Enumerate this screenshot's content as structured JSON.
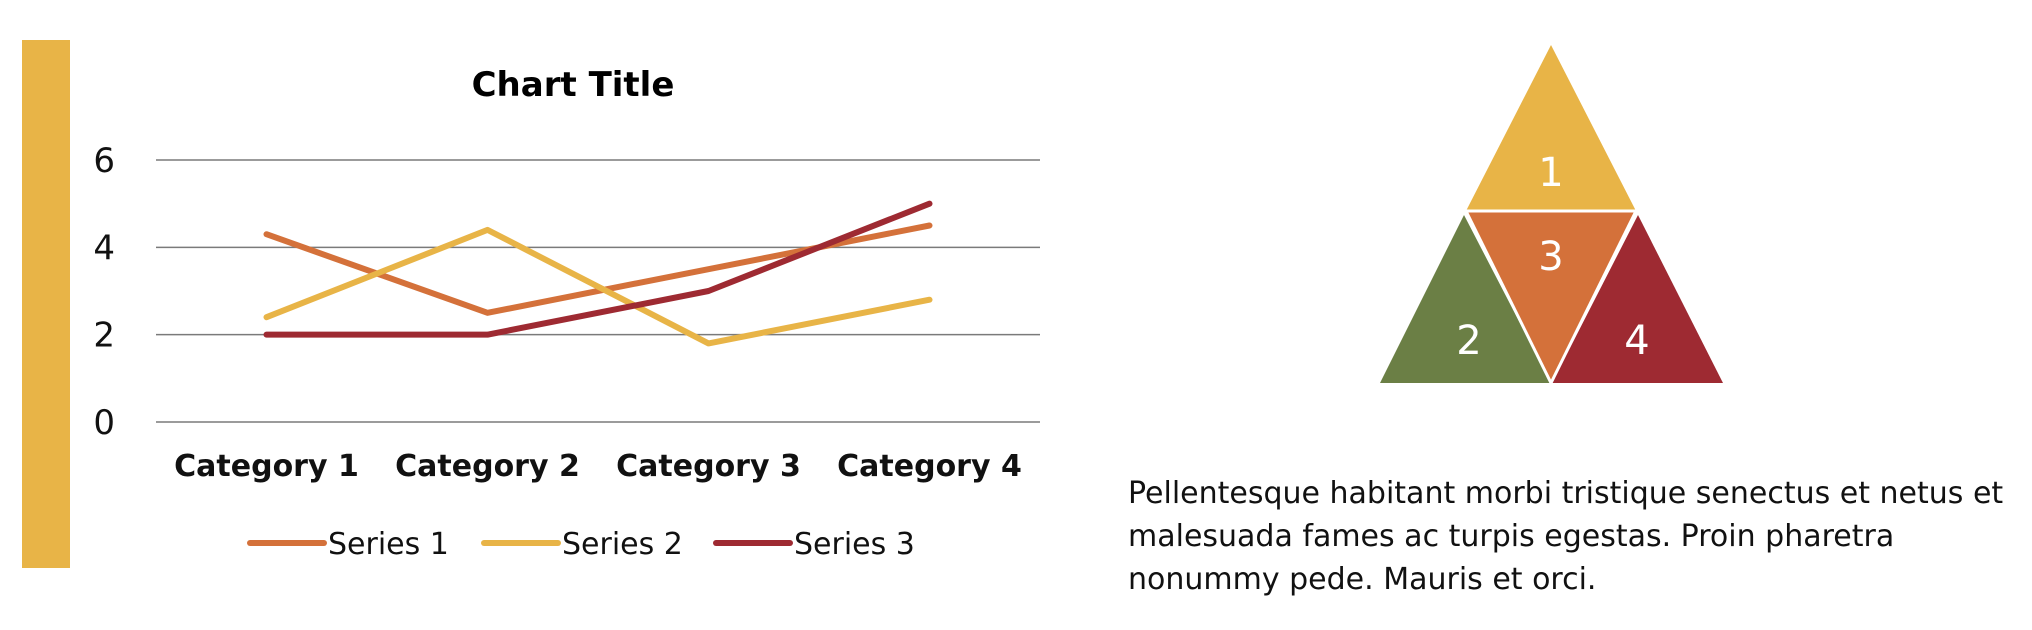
{
  "colors": {
    "accent": "#E8B447",
    "series1": "#D4713A",
    "series2": "#E8B447",
    "series3": "#9E2A32",
    "tri1": "#E8B447",
    "tri2": "#6B7F45",
    "tri3": "#D4713A",
    "tri4": "#9E2A32",
    "grid": "#7a7a7a"
  },
  "chart_data": {
    "type": "line",
    "title": "Chart Title",
    "categories": [
      "Category 1",
      "Category 2",
      "Category 3",
      "Category 4"
    ],
    "series": [
      {
        "name": "Series 1",
        "values": [
          4.3,
          2.5,
          3.5,
          4.5
        ]
      },
      {
        "name": "Series 2",
        "values": [
          2.4,
          4.4,
          1.8,
          2.8
        ]
      },
      {
        "name": "Series 3",
        "values": [
          2,
          2,
          3,
          5
        ]
      }
    ],
    "yticks": [
      0,
      2,
      4,
      6
    ],
    "ylim": [
      0,
      6
    ],
    "grid": true,
    "legend_position": "bottom"
  },
  "pyramid": {
    "labels": [
      "1",
      "2",
      "3",
      "4"
    ]
  },
  "body_text": "Pellentesque habitant morbi tristique senectus et netus et malesuada fames ac turpis egestas. Proin pharetra nonummy pede. Mauris et orci."
}
